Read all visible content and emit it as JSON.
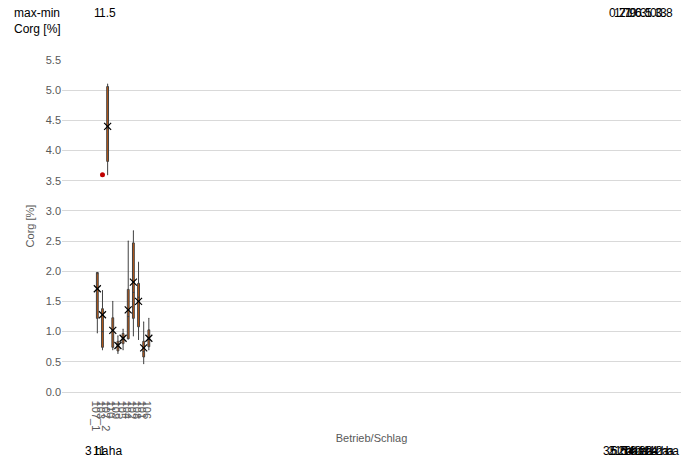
{
  "chart_data": {
    "type": "box",
    "x_label": "Betrieb/Schlag",
    "y_label": "Corg [%]",
    "categories": [
      "107_1",
      "103",
      "107_2",
      "110",
      "109",
      "105",
      "104",
      "102",
      "108",
      "101",
      "106"
    ],
    "min": [
      0.98,
      0.7,
      3.6,
      0.7,
      0.64,
      0.7,
      0.88,
      0.93,
      0.87,
      0.47,
      0.7
    ],
    "q1": [
      1.22,
      0.74,
      3.82,
      0.74,
      0.68,
      0.8,
      0.88,
      1.22,
      1.08,
      0.58,
      0.75
    ],
    "median": [
      1.96,
      1.0,
      4.37,
      1.0,
      0.8,
      0.87,
      1.25,
      1.65,
      1.57,
      0.67,
      0.87
    ],
    "q3": [
      1.98,
      1.38,
      5.06,
      1.23,
      0.84,
      0.97,
      1.7,
      2.47,
      1.8,
      0.84,
      1.03
    ],
    "max": [
      1.98,
      1.68,
      5.1,
      1.5,
      0.93,
      1.04,
      2.5,
      2.67,
      2.15,
      1.16,
      1.22
    ],
    "mean": [
      1.71,
      1.28,
      4.4,
      1.02,
      0.77,
      0.89,
      1.36,
      1.82,
      1.5,
      0.73,
      0.89
    ],
    "outliers": [
      [],
      [
        3.6
      ],
      [],
      [],
      [],
      [],
      [],
      [],
      [],
      [],
      []
    ],
    "range_row_label": [
      "max-min",
      "Corg [%]"
    ],
    "range_values": [
      1,
      2.9,
      1.5,
      0.8,
      0.3,
      0.3,
      1.6,
      1.7,
      1.3,
      0.7,
      0.5
    ],
    "area_labels": [
      "3 ha",
      "6.5 ha",
      "11 ha",
      "12 ha",
      "14 ha",
      "16 ha",
      "20 ha",
      "21 ha",
      "22 ha",
      "35 ha",
      "42 ha"
    ],
    "color": "#c55a11",
    "outlier_color": "#c00000",
    "marker": "x",
    "ylim": [
      0,
      5.5
    ],
    "yticks": [
      {
        "value": 0,
        "label": "0.0"
      },
      0.5,
      {
        "value": 1,
        "label": "1.0"
      },
      1.5,
      {
        "value": 2,
        "label": "2.0"
      },
      2.5,
      {
        "value": 3,
        "label": "3.0"
      },
      3.5,
      {
        "value": 4,
        "label": "4.0"
      },
      4.5,
      {
        "value": 5,
        "label": "5.0"
      },
      5.5
    ],
    "grid": true
  }
}
